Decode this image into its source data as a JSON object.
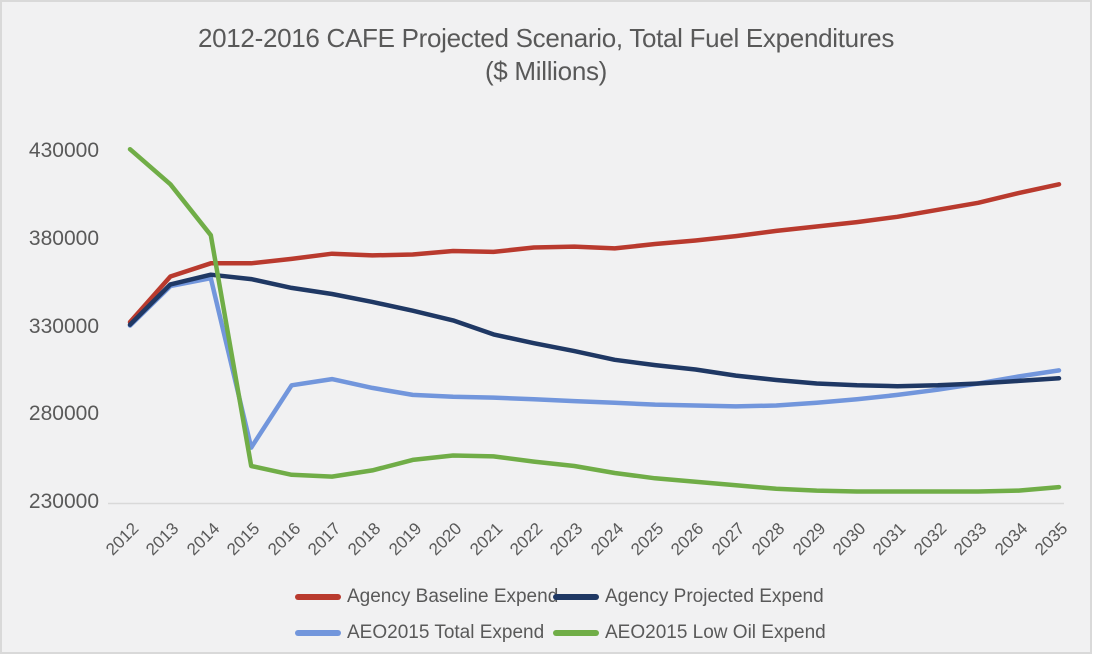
{
  "window": {
    "background": "#f1f1f2",
    "border_color": "#d9d9d9"
  },
  "title": {
    "line1": "2012-2016 CAFE Projected Scenario, Total Fuel Expenditures",
    "line2": "($ Millions)"
  },
  "chart_data": {
    "type": "line",
    "title": "2012-2016 CAFE Projected Scenario, Total Fuel Expenditures ($ Millions)",
    "xlabel": "",
    "ylabel": "",
    "x": [
      2012,
      2013,
      2014,
      2015,
      2016,
      2017,
      2018,
      2019,
      2020,
      2021,
      2022,
      2023,
      2024,
      2025,
      2026,
      2027,
      2028,
      2029,
      2030,
      2031,
      2032,
      2033,
      2034,
      2035
    ],
    "ylim": [
      230000,
      430000
    ],
    "y_ticks": [
      430000,
      380000,
      330000,
      280000,
      230000
    ],
    "grid": false,
    "legend_position": "bottom",
    "axis_color": "#d9d9d9",
    "text_color": "#595959",
    "line_width": 4.5,
    "draw_order": [
      0,
      2,
      1,
      3
    ],
    "series": [
      {
        "name": "Agency Baseline Expend",
        "color": "#b93a2e",
        "values": [
          332500,
          358500,
          366000,
          366000,
          368500,
          371500,
          370500,
          371000,
          373000,
          372500,
          375000,
          375500,
          374500,
          377000,
          379000,
          381500,
          384500,
          387000,
          389500,
          392500,
          396500,
          400500,
          406000,
          411000
        ]
      },
      {
        "name": "Agency Projected Expend",
        "color": "#1f3864",
        "values": [
          331000,
          354000,
          359500,
          357000,
          352000,
          348500,
          344000,
          339000,
          333500,
          325500,
          320500,
          316000,
          311000,
          308000,
          305500,
          302000,
          299500,
          297500,
          296500,
          296000,
          296500,
          297500,
          299000,
          300500
        ]
      },
      {
        "name": "AEO2015 Total Expend",
        "color": "#7296dc",
        "values": [
          330500,
          353000,
          357500,
          261000,
          296500,
          300000,
          295000,
          291000,
          290000,
          289500,
          288500,
          287500,
          286500,
          285500,
          285000,
          284500,
          285000,
          286500,
          288500,
          291000,
          294000,
          297500,
          301500,
          305000
        ]
      },
      {
        "name": "AEO2015 Low Oil Expend",
        "color": "#70ad47",
        "values": [
          431000,
          411000,
          382000,
          250500,
          245500,
          244500,
          248000,
          254000,
          256500,
          256000,
          253000,
          250500,
          246500,
          243500,
          241500,
          239500,
          237500,
          236500,
          236000,
          236000,
          236000,
          236000,
          236500,
          238500
        ]
      }
    ]
  }
}
